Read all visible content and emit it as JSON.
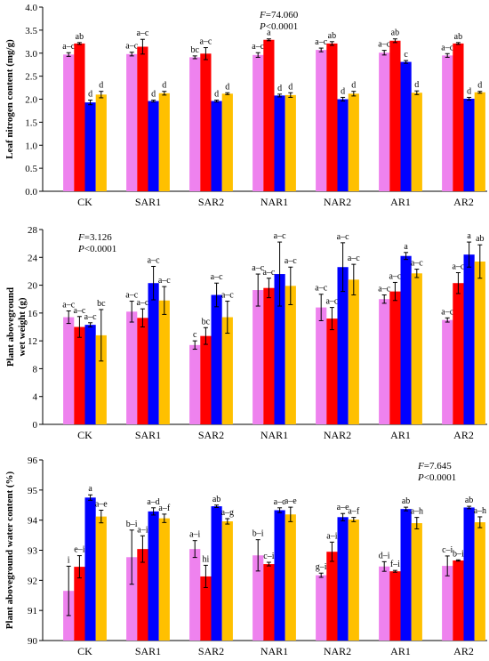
{
  "colors": {
    "series": [
      "#ee82ee",
      "#ff0000",
      "#0000ff",
      "#ffc000"
    ],
    "axis": "#000000",
    "error": "#000000"
  },
  "chart_data": [
    {
      "type": "bar",
      "ylabel": "Leaf nitrogen content (mg/g)",
      "ylim": [
        0,
        4.0
      ],
      "yticks": [
        "0.0",
        "0.5",
        "1.0",
        "1.5",
        "2.0",
        "2.5",
        "3.0",
        "3.5",
        "4.0"
      ],
      "categories": [
        "CK",
        "SAR1",
        "SAR2",
        "NAR1",
        "NAR2",
        "AR1",
        "AR2"
      ],
      "stat": {
        "F": "74.060",
        "P": "<0.0001"
      },
      "series": [
        {
          "values": [
            2.97,
            2.98,
            2.91,
            2.96,
            3.07,
            3.01,
            2.95
          ],
          "errors": [
            0.04,
            0.04,
            0.03,
            0.05,
            0.04,
            0.05,
            0.04
          ],
          "letters": [
            "a–c",
            "a–c",
            "bc",
            "a–c",
            "a–c",
            "a–c",
            "a–c"
          ]
        },
        {
          "values": [
            3.21,
            3.14,
            2.99,
            3.29,
            3.21,
            3.27,
            3.21
          ],
          "errors": [
            0.02,
            0.16,
            0.13,
            0.02,
            0.04,
            0.04,
            0.02
          ],
          "letters": [
            "ab",
            "a–c",
            "a–c",
            "a",
            "ab",
            "ab",
            "ab"
          ]
        },
        {
          "values": [
            1.93,
            1.96,
            1.96,
            2.08,
            2.0,
            2.81,
            2.01
          ],
          "errors": [
            0.05,
            0.02,
            0.02,
            0.03,
            0.04,
            0.03,
            0.03
          ],
          "letters": [
            "d",
            "d",
            "d",
            "d",
            "d",
            "c",
            "d"
          ]
        },
        {
          "values": [
            2.1,
            2.13,
            2.12,
            2.09,
            2.12,
            2.14,
            2.15
          ],
          "errors": [
            0.07,
            0.04,
            0.02,
            0.05,
            0.05,
            0.04,
            0.02
          ],
          "letters": [
            "d",
            "d",
            "d",
            "d",
            "d",
            "d",
            "d"
          ]
        }
      ]
    },
    {
      "type": "bar",
      "ylabel": "Plant aboveground wet weight (g)",
      "ylim": [
        0,
        28
      ],
      "yticks": [
        "0",
        "4",
        "8",
        "12",
        "16",
        "20",
        "24",
        "28"
      ],
      "categories": [
        "CK",
        "SAR1",
        "SAR2",
        "NAR1",
        "NAR2",
        "AR1",
        "AR2"
      ],
      "stat": {
        "F": "3.126",
        "P": "<0.0001"
      },
      "series": [
        {
          "values": [
            15.4,
            16.2,
            11.4,
            19.3,
            16.8,
            18.0,
            15.0
          ],
          "errors": [
            0.9,
            1.5,
            0.6,
            2.3,
            1.9,
            0.6,
            0.3
          ],
          "letters": [
            "a–c",
            "a–c",
            "c",
            "a–c",
            "a–c",
            "a–c",
            "a–c"
          ]
        },
        {
          "values": [
            14.0,
            15.3,
            12.7,
            19.6,
            15.2,
            19.1,
            20.3
          ],
          "errors": [
            1.5,
            1.3,
            1.2,
            1.4,
            1.6,
            1.3,
            1.5
          ],
          "letters": [
            "a–c",
            "a–c",
            "bc",
            "a–c",
            "a–c",
            "a–c",
            "a–c"
          ]
        },
        {
          "values": [
            14.3,
            20.3,
            18.6,
            21.6,
            22.6,
            24.2,
            24.4
          ],
          "errors": [
            0.3,
            2.4,
            1.7,
            4.6,
            3.5,
            0.5,
            1.8
          ],
          "letters": [
            "a–c",
            "a–c",
            "a–c",
            "a–c",
            "a–c",
            "a",
            "a"
          ]
        },
        {
          "values": [
            12.8,
            17.8,
            15.4,
            19.9,
            20.8,
            21.7,
            23.4
          ],
          "errors": [
            3.7,
            2.0,
            2.3,
            2.7,
            2.2,
            0.6,
            2.4
          ],
          "letters": [
            "bc",
            "a–c",
            "a–c",
            "a–c",
            "a–c",
            "a–c",
            "ab"
          ]
        }
      ]
    },
    {
      "type": "bar",
      "ylabel": "Plant aboveground water content (%)",
      "ylim": [
        90,
        96
      ],
      "yticks": [
        "90",
        "91",
        "92",
        "93",
        "94",
        "95",
        "96"
      ],
      "categories": [
        "CK",
        "SAR1",
        "SAR2",
        "NAR1",
        "NAR2",
        "AR1",
        "AR2"
      ],
      "stat": {
        "F": "7.645",
        "P": "<0.0001"
      },
      "series": [
        {
          "values": [
            91.65,
            92.77,
            93.04,
            92.83,
            92.17,
            92.46,
            92.48
          ],
          "errors": [
            0.82,
            0.9,
            0.28,
            0.52,
            0.07,
            0.16,
            0.33
          ],
          "letters": [
            "i",
            "b–i",
            "a–i",
            "b–i",
            "g–i",
            "d–i",
            "c–i"
          ]
        },
        {
          "values": [
            92.45,
            93.04,
            92.13,
            92.54,
            92.95,
            92.3,
            92.66
          ],
          "errors": [
            0.37,
            0.44,
            0.37,
            0.06,
            0.32,
            0.03,
            0.02
          ],
          "letters": [
            "e–i",
            "a–i",
            "hi",
            "c–i",
            "a–i",
            "f–i",
            "b–i"
          ]
        },
        {
          "values": [
            94.75,
            94.29,
            94.46,
            94.33,
            94.1,
            94.37,
            94.42
          ],
          "errors": [
            0.09,
            0.12,
            0.04,
            0.08,
            0.12,
            0.06,
            0.04
          ],
          "letters": [
            "a",
            "a–d",
            "ab",
            "a–c",
            "a–e",
            "ab",
            "ab"
          ]
        },
        {
          "values": [
            94.12,
            94.06,
            93.96,
            94.19,
            94.02,
            93.9,
            93.93
          ],
          "errors": [
            0.21,
            0.14,
            0.09,
            0.24,
            0.07,
            0.19,
            0.18
          ],
          "letters": [
            "a–e",
            "a–f",
            "a–g",
            "a–e",
            "a–f",
            "a–h",
            "a–h"
          ]
        }
      ]
    }
  ]
}
